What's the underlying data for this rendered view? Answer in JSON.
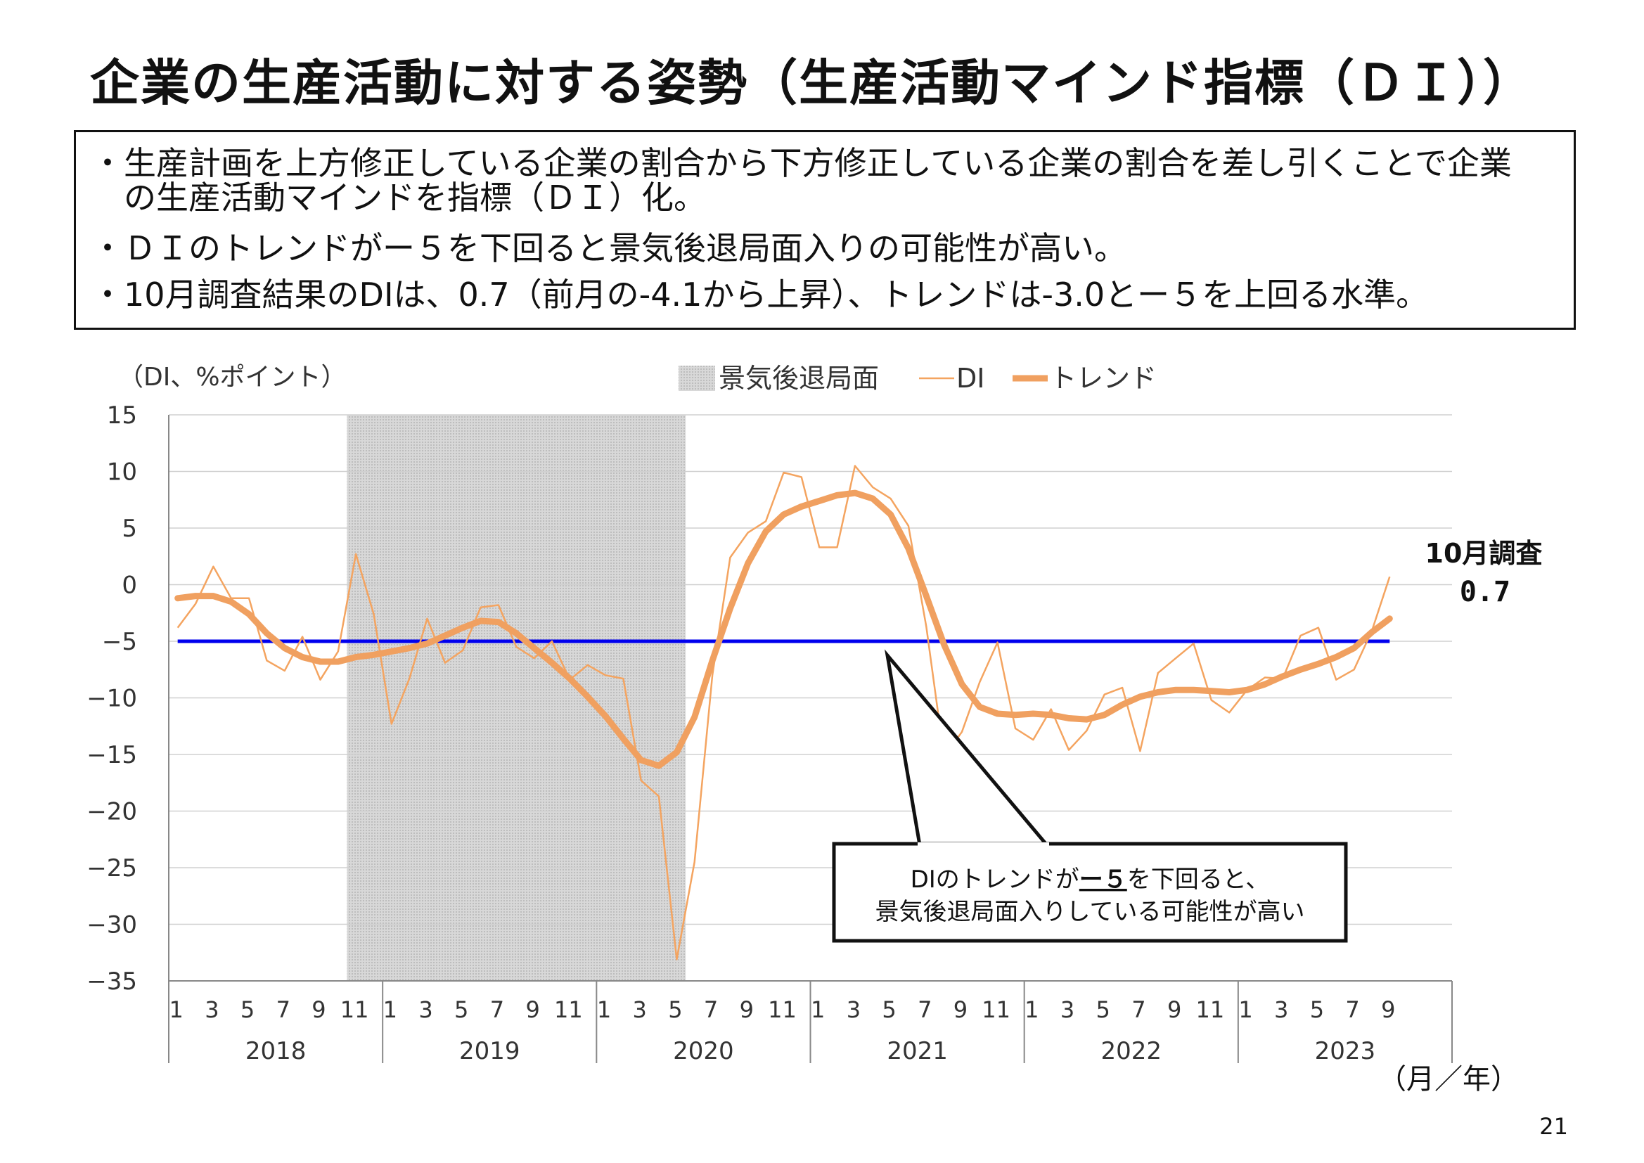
{
  "page": {
    "title": "企業の生産活動に対する姿勢（生産活動マインド指標（ＤＩ））",
    "bullets": [
      "・生産計画を上方修正している企業の割合から下方修正している企業の割合を差し引くことで企業",
      "　の生産活動マインドを指標（ＤＩ）化。",
      "・ＤＩのトレンドがー５を下回ると景気後退局面入りの可能性が高い。",
      "・10月調査結果のDIは、0.7（前月の-4.1から上昇）、トレンドは-3.0とー５を上回る水準。"
    ],
    "page_number": "21"
  },
  "colors": {
    "di_line": "#F4A460",
    "trend_line": "#F0A060",
    "threshold_line": "#0000EE",
    "recession_fill": "#d8d8d8",
    "axis": "#888888"
  },
  "chart_data": {
    "type": "line",
    "ylabel": "（DI、%ポイント）",
    "xlabel": "（月／年）",
    "ylim": [
      -35,
      15
    ],
    "yticks": [
      "15",
      "10",
      "5",
      "0",
      "−5",
      "−10",
      "−15",
      "−20",
      "−25",
      "−30",
      "−35"
    ],
    "ytick_values": [
      15,
      10,
      5,
      0,
      -5,
      -10,
      -15,
      -20,
      -25,
      -30,
      -35
    ],
    "month_ticks": [
      "1",
      "3",
      "5",
      "7",
      "9",
      "11"
    ],
    "years": [
      "2018",
      "2019",
      "2020",
      "2021",
      "2022",
      "2023"
    ],
    "x_start": "2018-01",
    "legend": [
      "景気後退局面",
      "DI",
      "トレンド"
    ],
    "recession_period": {
      "start": "2018-11",
      "end": "2020-05"
    },
    "threshold": -5,
    "series": [
      {
        "name": "DI",
        "values": [
          -3.8,
          -1.7,
          1.6,
          -1.2,
          -1.2,
          -6.7,
          -7.6,
          -4.6,
          -8.4,
          -5.9,
          2.7,
          -2.6,
          -12.3,
          -8.3,
          -3.0,
          -6.9,
          -5.8,
          -2.0,
          -1.8,
          -5.5,
          -6.5,
          -5.0,
          -8.4,
          -7.1,
          -8.0,
          -8.3,
          -17.3,
          -18.7,
          -33.1,
          -24.5,
          -8.0,
          2.4,
          4.6,
          5.6,
          9.9,
          9.5,
          3.3,
          3.3,
          10.5,
          8.6,
          7.6,
          5.2,
          -3.7,
          -15.2,
          -13.0,
          -8.6,
          -5.1,
          -12.7,
          -13.7,
          -11.0,
          -14.6,
          -12.9,
          -9.7,
          -9.1,
          -14.7,
          -7.8,
          -6.5,
          -5.2,
          -10.2,
          -11.3,
          -9.3,
          -8.2,
          -8.3,
          -4.5,
          -3.8,
          -8.4,
          -7.5,
          -4.1,
          0.7
        ]
      },
      {
        "name": "トレンド",
        "values": [
          -1.2,
          -1.0,
          -1.0,
          -1.5,
          -2.6,
          -4.3,
          -5.6,
          -6.4,
          -6.8,
          -6.8,
          -6.4,
          -6.2,
          -5.9,
          -5.6,
          -5.2,
          -4.5,
          -3.8,
          -3.2,
          -3.3,
          -4.3,
          -5.6,
          -6.9,
          -8.3,
          -9.9,
          -11.6,
          -13.6,
          -15.5,
          -16.0,
          -14.8,
          -11.7,
          -6.7,
          -2.1,
          1.9,
          4.7,
          6.2,
          6.9,
          7.4,
          7.9,
          8.1,
          7.6,
          6.2,
          3.2,
          -1.0,
          -5.3,
          -8.8,
          -10.8,
          -11.4,
          -11.5,
          -11.4,
          -11.5,
          -11.8,
          -11.9,
          -11.5,
          -10.6,
          -9.9,
          -9.5,
          -9.3,
          -9.3,
          -9.4,
          -9.5,
          -9.3,
          -8.8,
          -8.1,
          -7.5,
          -7.0,
          -6.4,
          -5.6,
          -4.2,
          -3.0
        ]
      }
    ],
    "annotation": {
      "line1_before": "DIのトレンドが",
      "line1_underlined": "ー５",
      "line1_after": "を下回ると、",
      "line2": "景気後退局面入りしている可能性が高い"
    },
    "latest_label": {
      "line1": "10月調査",
      "line2": "0.7"
    }
  }
}
